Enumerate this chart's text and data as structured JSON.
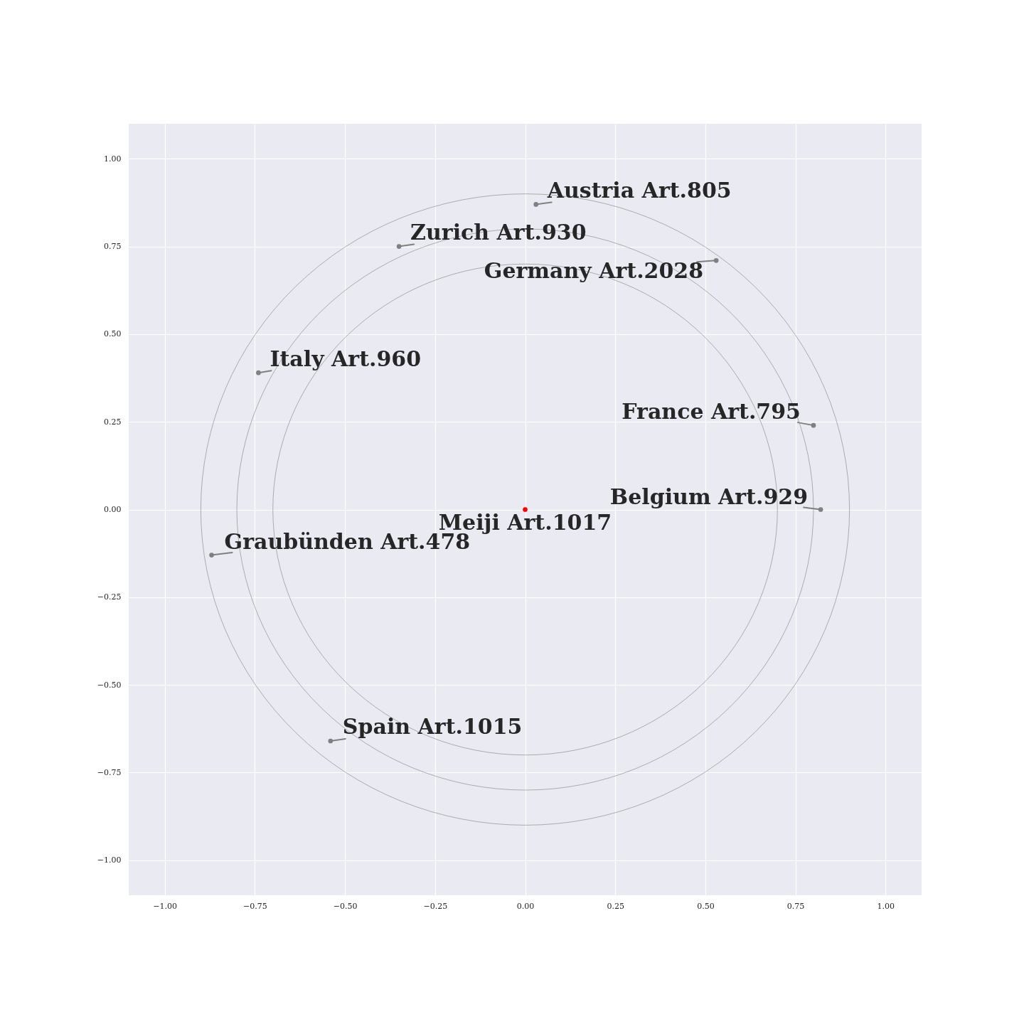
{
  "chart_data": {
    "type": "scatter",
    "xlim": [
      -1.1,
      1.1
    ],
    "ylim": [
      -1.1,
      1.1
    ],
    "xticks": [
      {
        "value": -1,
        "label": "−1.00"
      },
      {
        "value": -0.75,
        "label": "−0.75"
      },
      {
        "value": -0.5,
        "label": "−0.50"
      },
      {
        "value": -0.25,
        "label": "−0.25"
      },
      {
        "value": 0,
        "label": "0.00"
      },
      0.25,
      {
        "value": 0.5,
        "label": "0.50"
      },
      0.75,
      {
        "value": 1,
        "label": "1.00"
      }
    ],
    "yticks": [
      {
        "value": -1,
        "label": "−1.00"
      },
      {
        "value": -0.75,
        "label": "−0.75"
      },
      {
        "value": -0.5,
        "label": "−0.50"
      },
      {
        "value": -0.25,
        "label": "−0.25"
      },
      {
        "value": 0,
        "label": "0.00"
      },
      0.25,
      {
        "value": 0.5,
        "label": "0.50"
      },
      0.75,
      {
        "value": 1,
        "label": "1.00"
      }
    ],
    "grid": true,
    "series": [
      {
        "type": "scatter",
        "color": "#808080",
        "marker": "circle",
        "x": [
          0.03,
          -0.35,
          0.53,
          -0.74,
          0.8,
          0.82,
          -0.87,
          -0.54
        ],
        "values": [
          0.87,
          0.75,
          0.71,
          0.39,
          0.24,
          0,
          -0.13,
          -0.66
        ]
      },
      {
        "type": "scatter",
        "color": "#ff0000",
        "marker": "circle",
        "x": [
          0
        ],
        "values": [
          0
        ]
      }
    ],
    "annotations": [
      {
        "text": "Austria Art.805",
        "x": 0.03,
        "y": 0.87
      },
      {
        "text": "Zurich Art.930",
        "x": -0.35,
        "y": 0.75
      },
      {
        "text": "Germany Art.2028",
        "x": 0.53,
        "y": 0.71
      },
      {
        "text": "Italy Art.960",
        "x": -0.74,
        "y": 0.39
      },
      {
        "text": "France Art.795",
        "x": 0.8,
        "y": 0.24
      },
      {
        "text": "Belgium Art.929",
        "x": 0.82,
        "y": 0
      },
      {
        "text": "Meiji Art.1017",
        "x": 0,
        "y": 0
      },
      {
        "text": "Graubünden Art.478",
        "x": -0.87,
        "y": -0.13
      },
      {
        "text": "Spain Art.1015",
        "x": -0.54,
        "y": -0.66
      }
    ]
  }
}
